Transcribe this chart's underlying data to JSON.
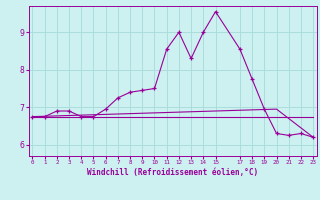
{
  "xlabel": "Windchill (Refroidissement éolien,°C)",
  "ylabel": "",
  "background_color": "#cdf0f0",
  "grid_color": "#aadddd",
  "line_color": "#990099",
  "x_ticks": [
    0,
    1,
    2,
    3,
    4,
    5,
    6,
    7,
    8,
    9,
    10,
    11,
    12,
    13,
    14,
    15,
    17,
    18,
    19,
    20,
    21,
    22,
    23
  ],
  "ylim": [
    5.7,
    9.7
  ],
  "xlim": [
    -0.3,
    23.3
  ],
  "series_main": {
    "x": [
      0,
      1,
      2,
      3,
      4,
      5,
      6,
      7,
      8,
      9,
      10,
      11,
      12,
      13,
      14,
      15,
      17,
      18,
      19,
      20,
      21,
      22,
      23
    ],
    "y": [
      6.75,
      6.75,
      6.9,
      6.9,
      6.75,
      6.75,
      6.95,
      7.25,
      7.4,
      7.45,
      7.5,
      8.55,
      9.0,
      8.3,
      9.0,
      9.55,
      8.55,
      7.75,
      6.95,
      6.3,
      6.25,
      6.3,
      6.2
    ]
  },
  "series_flat": {
    "x": [
      0,
      23
    ],
    "y": [
      6.75,
      6.75
    ]
  },
  "series_diag": {
    "x": [
      0,
      20,
      23
    ],
    "y": [
      6.75,
      6.95,
      6.2
    ]
  }
}
